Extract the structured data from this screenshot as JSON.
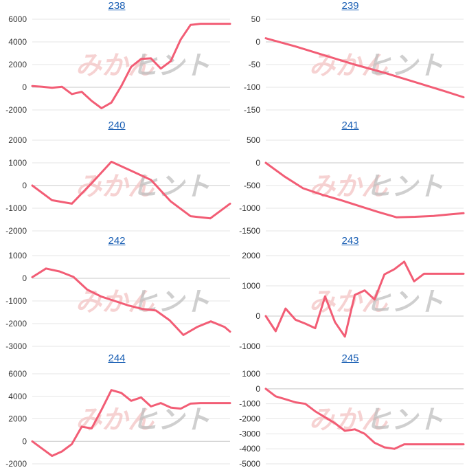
{
  "colors": {
    "line": "#f25d75",
    "grid": "#e6e6e6",
    "watermark_left": "#f3c3c3",
    "watermark_right": "#bfbfbf"
  },
  "watermark": {
    "left": "みかん",
    "right": "ヒント"
  },
  "chart_data": [
    {
      "type": "line",
      "title": "238",
      "ylim": [
        -2000,
        6000
      ],
      "yticks": [
        -2000,
        0,
        2000,
        4000,
        6000
      ],
      "x": [
        0,
        4,
        8,
        12,
        16,
        20,
        24,
        28,
        32,
        36,
        40,
        44,
        48,
        52,
        56,
        60,
        64,
        68,
        72,
        76,
        80
      ],
      "values": [
        100,
        50,
        -50,
        50,
        -600,
        -400,
        -1200,
        -1850,
        -1350,
        100,
        1800,
        2500,
        2550,
        1650,
        2300,
        4200,
        5500,
        5600,
        5600,
        5600,
        5600
      ]
    },
    {
      "type": "line",
      "title": "239",
      "ylim": [
        -150,
        50
      ],
      "yticks": [
        -150,
        -100,
        -50,
        0,
        50
      ],
      "x": [
        0,
        1
      ],
      "values": [
        8,
        -122
      ]
    },
    {
      "type": "line",
      "title": "240",
      "ylim": [
        -2000,
        2000
      ],
      "yticks": [
        -2000,
        -1000,
        0,
        1000,
        2000
      ],
      "x": [
        0,
        5,
        10,
        15,
        20,
        25,
        30,
        35,
        40,
        45,
        50
      ],
      "values": [
        0,
        -650,
        -800,
        100,
        1050,
        650,
        250,
        -700,
        -1350,
        -1450,
        -800
      ]
    },
    {
      "type": "line",
      "title": "241",
      "ylim": [
        -1500,
        500
      ],
      "yticks": [
        -1500,
        -1000,
        -500,
        0,
        500
      ],
      "x": [
        0,
        1,
        2,
        3,
        4,
        5
      ],
      "values": [
        0,
        -250,
        -500,
        -700,
        -850,
        -1000
      ]
    },
    {
      "type": "line",
      "title": "242",
      "ylim": [
        -3000,
        1000
      ],
      "yticks": [
        -3000,
        -2000,
        -1000,
        0,
        1000
      ],
      "x": [
        0,
        1
      ],
      "values": [
        50,
        420
      ]
    },
    {
      "type": "line",
      "title": "243",
      "ylim": [
        -1000,
        2000
      ],
      "yticks": [
        -1000,
        0,
        1000,
        2000
      ],
      "x": [
        0,
        1,
        2,
        3,
        4,
        5,
        6,
        7,
        8,
        9,
        10,
        11,
        12,
        13,
        14,
        15,
        16,
        17,
        18,
        19,
        20
      ],
      "values": [
        0,
        -500,
        250,
        -120,
        -250,
        -400,
        650,
        -200,
        -680,
        700,
        850,
        550,
        1380,
        1550,
        1800,
        1150,
        1400,
        1400,
        1400,
        1400,
        1400
      ]
    },
    {
      "type": "line",
      "title": "244",
      "ylim": [
        -2000,
        6000
      ],
      "yticks": [
        -2000,
        0,
        2000,
        4000,
        6000
      ],
      "x": [
        0,
        1,
        2,
        3,
        4,
        5,
        6,
        7,
        8,
        9,
        10,
        11,
        12,
        13,
        14,
        15,
        16,
        17,
        18,
        19,
        20
      ],
      "values": [
        0,
        -650,
        -1300,
        -900,
        -250,
        1300,
        1150,
        2800,
        4550,
        4300,
        3600,
        3900,
        3100,
        3400,
        3000,
        2900,
        3350,
        3400,
        3400,
        3400,
        3400
      ]
    },
    {
      "type": "line",
      "title": "245",
      "ylim": [
        -5000,
        1000
      ],
      "yticks": [
        -5000,
        -4000,
        -3000,
        -2000,
        -1000,
        0,
        1000
      ],
      "x": [
        0,
        1,
        2,
        3,
        4,
        5,
        6,
        7,
        8,
        9,
        10,
        11,
        12,
        13,
        14,
        15,
        16,
        17,
        18,
        19,
        20
      ],
      "values": [
        0,
        -500,
        -700,
        -900,
        -1000,
        -1500,
        -1900,
        -2300,
        -2800,
        -2700,
        -3000,
        -3600,
        -3900,
        -4000,
        -3700,
        -3700,
        -3700,
        -3700,
        -3700,
        -3700,
        -3700
      ]
    }
  ]
}
